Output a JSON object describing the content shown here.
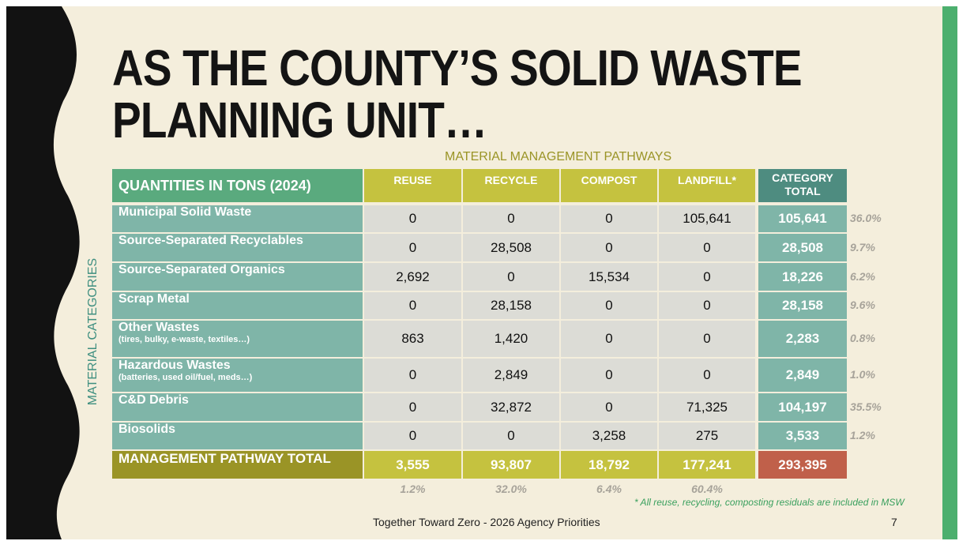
{
  "title_lines": [
    "AS THE COUNTY’S SOLID WASTE",
    "PLANNING UNIT…"
  ],
  "column_group_label": "MATERIAL MANAGEMENT PATHWAYS",
  "row_group_label": "MATERIAL CATEGORIES",
  "table": {
    "header": [
      "QUANTITIES IN TONS (2024)",
      "REUSE",
      "RECYCLE",
      "COMPOST",
      "LANDFILL*",
      "CATEGORY TOTAL"
    ],
    "rows": [
      {
        "label": "Municipal Solid Waste",
        "cells": [
          "0",
          "0",
          "0",
          "105,641",
          "105,641"
        ],
        "share": "36.0%"
      },
      {
        "label": "Source-Separated Recyclables",
        "cells": [
          "0",
          "28,508",
          "0",
          "0",
          "28,508"
        ],
        "share": "9.7%"
      },
      {
        "label": "Source-Separated Organics",
        "cells": [
          "2,692",
          "0",
          "15,534",
          "0",
          "18,226"
        ],
        "share": "6.2%"
      },
      {
        "label": "Scrap Metal",
        "cells": [
          "0",
          "28,158",
          "0",
          "0",
          "28,158"
        ],
        "share": "9.6%"
      },
      {
        "label": "Other Wastes",
        "note": "(tires, bulky, e-waste, textiles…)",
        "cells": [
          "863",
          "1,420",
          "0",
          "0",
          "2,283"
        ],
        "share": "0.8%"
      },
      {
        "label": "Hazardous Wastes",
        "note": "(batteries, used oil/fuel, meds…)",
        "cells": [
          "0",
          "2,849",
          "0",
          "0",
          "2,849"
        ],
        "share": "1.0%"
      },
      {
        "label": "C&D Debris",
        "cells": [
          "0",
          "32,872",
          "0",
          "71,325",
          "104,197"
        ],
        "share": "35.5%"
      },
      {
        "label": "Biosolids",
        "cells": [
          "0",
          "0",
          "3,258",
          "275",
          "3,533"
        ],
        "share": "1.2%"
      }
    ],
    "total_row": {
      "label": "MANAGEMENT PATHWAY TOTAL",
      "cells": [
        "3,555",
        "93,807",
        "18,792",
        "177,241",
        "293,395"
      ]
    },
    "pathway_shares": [
      "1.2%",
      "32.0%",
      "6.4%",
      "60.4%"
    ]
  },
  "footnote": "* All reuse, recycling, composting residuals are included in MSW",
  "footer": "Together Toward Zero - 2026 Agency Priorities",
  "page_number": "7"
}
